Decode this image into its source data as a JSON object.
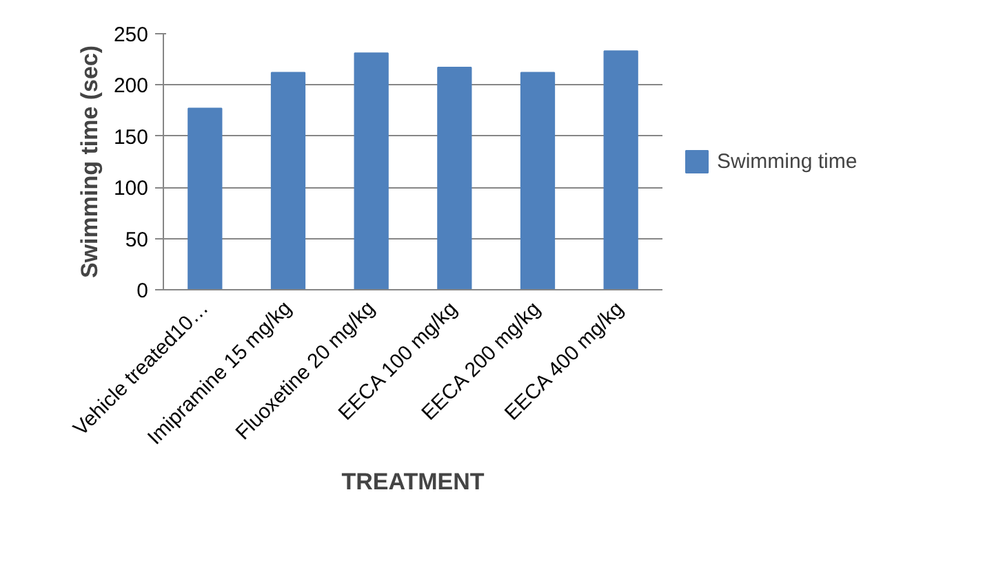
{
  "chart_data": {
    "type": "bar",
    "xlabel": "TREATMENT",
    "ylabel": "Swimming time (sec)",
    "categories": [
      "Vehicle treated10…",
      "Imipramine 15 mg/kg",
      "Fluoxetine 20 mg/kg",
      "EECA 100 mg/kg",
      "EECA 200 mg/kg",
      "EECA 400 mg/kg"
    ],
    "series": [
      {
        "name": "Swimming time",
        "color": "#4f81bd",
        "values": [
          177,
          212,
          231,
          217,
          212,
          233
        ]
      }
    ],
    "ylim": [
      0,
      250
    ],
    "yticks": [
      0,
      50,
      100,
      150,
      200,
      250
    ],
    "grid": "y",
    "legend": "right"
  }
}
